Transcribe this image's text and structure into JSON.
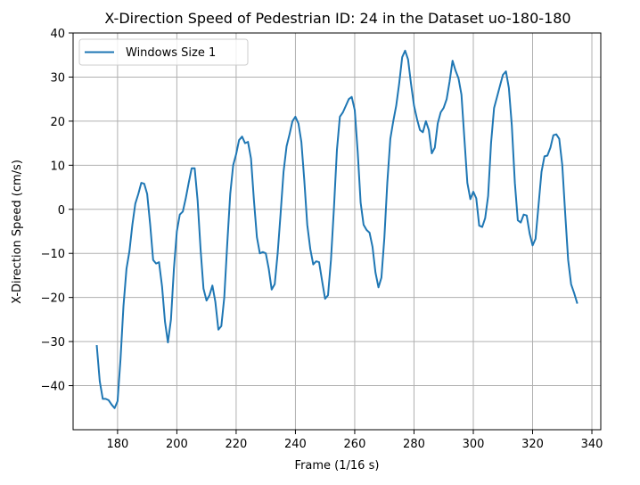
{
  "chart_data": {
    "type": "line",
    "title": "X-Direction Speed of Pedestrian ID: 24 in the Dataset uo-180-180",
    "xlabel": "Frame (1/16 s)",
    "ylabel": "X-Direction Speed (cm/s)",
    "xlim": [
      165,
      343
    ],
    "ylim": [
      -50,
      40
    ],
    "xticks": [
      180,
      200,
      220,
      240,
      260,
      280,
      300,
      320,
      340
    ],
    "yticks": [
      -40,
      -30,
      -20,
      -10,
      0,
      10,
      20,
      30,
      40
    ],
    "xtick_labels": [
      "180",
      "200",
      "220",
      "240",
      "260",
      "280",
      "300",
      "320",
      "340"
    ],
    "ytick_labels": [
      "−40",
      "−30",
      "−20",
      "−10",
      "0",
      "10",
      "20",
      "30",
      "40"
    ],
    "grid": true,
    "legend_position": "top-left",
    "series": [
      {
        "name": "Windows Size 1",
        "color": "#1f77b4",
        "points": [
          [
            173,
            -31
          ],
          [
            174,
            -39
          ],
          [
            175,
            -43
          ],
          [
            176,
            -43
          ],
          [
            177,
            -43.3
          ],
          [
            178,
            -44.3
          ],
          [
            179,
            -45.1
          ],
          [
            180,
            -43.5
          ],
          [
            181,
            -34
          ],
          [
            182,
            -22
          ],
          [
            183,
            -13.5
          ],
          [
            184,
            -9.5
          ],
          [
            185,
            -3.5
          ],
          [
            186,
            1.3
          ],
          [
            187,
            3.5
          ],
          [
            188,
            6
          ],
          [
            189,
            5.8
          ],
          [
            190,
            3.5
          ],
          [
            191,
            -3.5
          ],
          [
            192,
            -11.5
          ],
          [
            193,
            -12.3
          ],
          [
            194,
            -12
          ],
          [
            195,
            -17.5
          ],
          [
            196,
            -25.5
          ],
          [
            197,
            -30.2
          ],
          [
            198,
            -25
          ],
          [
            199,
            -13.5
          ],
          [
            200,
            -5
          ],
          [
            201,
            -1.2
          ],
          [
            202,
            -0.5
          ],
          [
            203,
            2.5
          ],
          [
            204,
            6
          ],
          [
            205,
            9.3
          ],
          [
            206,
            9.3
          ],
          [
            207,
            2
          ],
          [
            208,
            -9
          ],
          [
            209,
            -18
          ],
          [
            210,
            -20.7
          ],
          [
            211,
            -19.5
          ],
          [
            212,
            -17.3
          ],
          [
            213,
            -21
          ],
          [
            214,
            -27.3
          ],
          [
            215,
            -26.5
          ],
          [
            216,
            -20
          ],
          [
            217,
            -8
          ],
          [
            218,
            3.5
          ],
          [
            219,
            10
          ],
          [
            220,
            12.5
          ],
          [
            221,
            15.7
          ],
          [
            222,
            16.5
          ],
          [
            223,
            15
          ],
          [
            224,
            15.3
          ],
          [
            225,
            11.5
          ],
          [
            226,
            2
          ],
          [
            227,
            -6.3
          ],
          [
            228,
            -10
          ],
          [
            229,
            -9.7
          ],
          [
            230,
            -10
          ],
          [
            231,
            -13.5
          ],
          [
            232,
            -18.2
          ],
          [
            233,
            -17
          ],
          [
            234,
            -10
          ],
          [
            235,
            -1
          ],
          [
            236,
            8.5
          ],
          [
            237,
            14.3
          ],
          [
            238,
            17
          ],
          [
            239,
            20
          ],
          [
            240,
            21
          ],
          [
            241,
            19.5
          ],
          [
            242,
            15.3
          ],
          [
            243,
            6.5
          ],
          [
            244,
            -3.5
          ],
          [
            245,
            -9
          ],
          [
            246,
            -12.5
          ],
          [
            247,
            -11.8
          ],
          [
            248,
            -12
          ],
          [
            249,
            -16.3
          ],
          [
            250,
            -20.3
          ],
          [
            251,
            -19.5
          ],
          [
            252,
            -11.5
          ],
          [
            253,
            0.5
          ],
          [
            254,
            13.5
          ],
          [
            255,
            21
          ],
          [
            256,
            22
          ],
          [
            257,
            23.5
          ],
          [
            258,
            25
          ],
          [
            259,
            25.5
          ],
          [
            260,
            22.5
          ],
          [
            261,
            13
          ],
          [
            262,
            1.5
          ],
          [
            263,
            -3.5
          ],
          [
            264,
            -4.7
          ],
          [
            265,
            -5.3
          ],
          [
            266,
            -8.5
          ],
          [
            267,
            -14.3
          ],
          [
            268,
            -17.7
          ],
          [
            269,
            -15.5
          ],
          [
            270,
            -6.5
          ],
          [
            271,
            6
          ],
          [
            272,
            16
          ],
          [
            273,
            20
          ],
          [
            274,
            23.5
          ],
          [
            275,
            28.5
          ],
          [
            276,
            34.5
          ],
          [
            277,
            36
          ],
          [
            278,
            34
          ],
          [
            279,
            28.5
          ],
          [
            280,
            23.5
          ],
          [
            281,
            20.5
          ],
          [
            282,
            18
          ],
          [
            283,
            17.5
          ],
          [
            284,
            20
          ],
          [
            285,
            18
          ],
          [
            286,
            12.7
          ],
          [
            287,
            14
          ],
          [
            288,
            19.5
          ],
          [
            289,
            22
          ],
          [
            290,
            23
          ],
          [
            291,
            25
          ],
          [
            292,
            29
          ],
          [
            293,
            33.7
          ],
          [
            294,
            31.5
          ],
          [
            295,
            29.7
          ],
          [
            296,
            26
          ],
          [
            297,
            16
          ],
          [
            298,
            6
          ],
          [
            299,
            2.3
          ],
          [
            300,
            4
          ],
          [
            301,
            2.5
          ],
          [
            302,
            -3.7
          ],
          [
            303,
            -4
          ],
          [
            304,
            -2
          ],
          [
            305,
            3
          ],
          [
            306,
            15
          ],
          [
            307,
            23
          ],
          [
            308,
            25.5
          ],
          [
            309,
            28
          ],
          [
            310,
            30.5
          ],
          [
            311,
            31.3
          ],
          [
            312,
            27.5
          ],
          [
            313,
            19
          ],
          [
            314,
            6
          ],
          [
            315,
            -2.5
          ],
          [
            316,
            -3
          ],
          [
            317,
            -1.2
          ],
          [
            318,
            -1.4
          ],
          [
            319,
            -5.5
          ],
          [
            320,
            -8.2
          ],
          [
            321,
            -6.7
          ],
          [
            322,
            1
          ],
          [
            323,
            8.5
          ],
          [
            324,
            12
          ],
          [
            325,
            12.2
          ],
          [
            326,
            14
          ],
          [
            327,
            16.8
          ],
          [
            328,
            17
          ],
          [
            329,
            16
          ],
          [
            330,
            10
          ],
          [
            331,
            -1
          ],
          [
            332,
            -11.5
          ],
          [
            333,
            -17
          ],
          [
            334,
            -19
          ],
          [
            335,
            -21.2
          ]
        ]
      }
    ]
  }
}
